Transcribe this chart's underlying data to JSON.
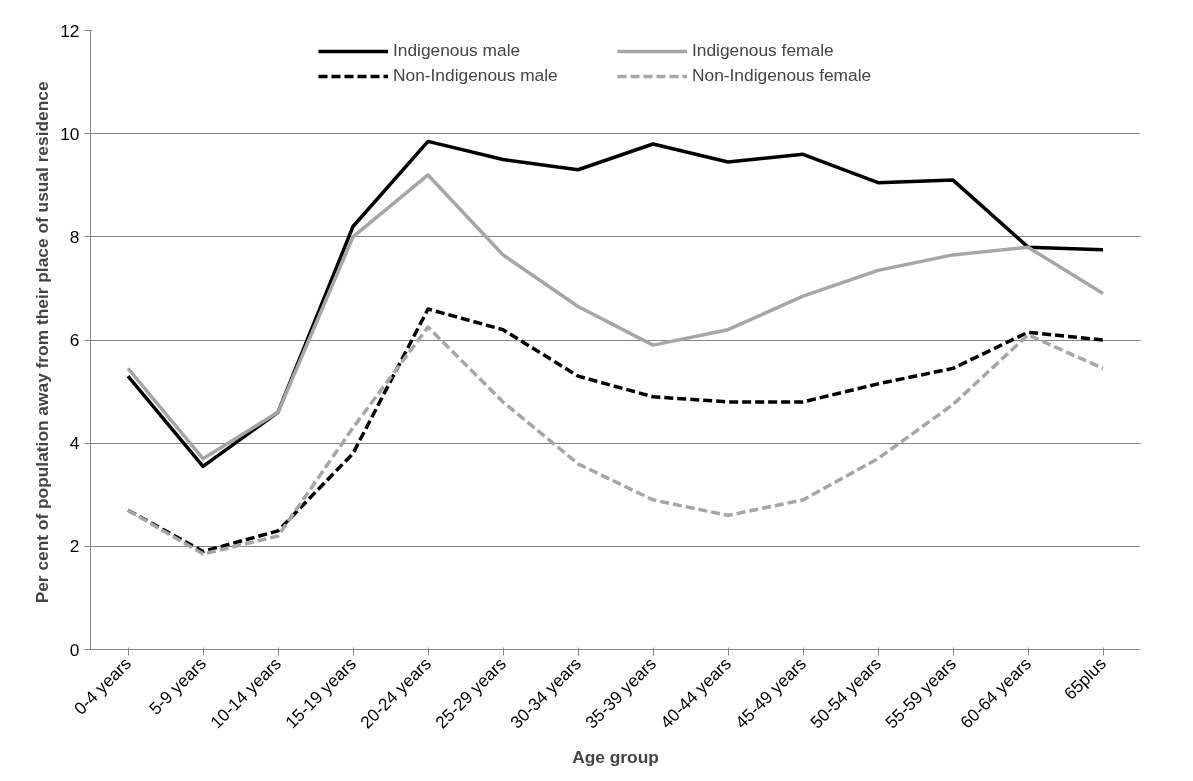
{
  "chart_data": {
    "type": "line",
    "xlabel": "Age group",
    "ylabel": "Per cent of population  away from their place of usual residence",
    "categories": [
      "0-4 years",
      "5-9 years",
      "10-14 years",
      "15-19 years",
      "20-24 years",
      "25-29 years",
      "30-34 years",
      "35-39 years",
      "40-44 years",
      "45-49 years",
      "50-54 years",
      "55-59 years",
      "60-64 years",
      "65plus"
    ],
    "series": [
      {
        "name": "Indigenous male",
        "color": "#000000",
        "line_style": "solid",
        "values": [
          5.3,
          3.55,
          4.6,
          8.2,
          9.85,
          9.5,
          9.3,
          9.8,
          9.45,
          9.6,
          9.05,
          9.1,
          7.8,
          7.75
        ]
      },
      {
        "name": "Indigenous female",
        "color": "#a6a6a6",
        "line_style": "solid",
        "values": [
          5.45,
          3.7,
          4.6,
          8.0,
          9.2,
          7.65,
          6.65,
          5.9,
          6.2,
          6.85,
          7.35,
          7.65,
          7.8,
          6.9
        ]
      },
      {
        "name": "Non-Indigenous male",
        "color": "#000000",
        "line_style": "dashed",
        "values": [
          2.7,
          1.9,
          2.3,
          3.8,
          6.6,
          6.2,
          5.3,
          4.9,
          4.8,
          4.8,
          5.15,
          5.45,
          6.15,
          6.0
        ]
      },
      {
        "name": "Non-Indigenous female",
        "color": "#a6a6a6",
        "line_style": "dashed",
        "values": [
          2.7,
          1.85,
          2.2,
          4.3,
          6.25,
          4.8,
          3.6,
          2.9,
          2.6,
          2.9,
          3.7,
          4.75,
          6.1,
          5.45
        ]
      }
    ],
    "ylim": [
      0,
      12
    ],
    "yticks": [
      0,
      2,
      4,
      6,
      8,
      10,
      12
    ],
    "grid": "y",
    "legend": "top",
    "marker": "none"
  }
}
